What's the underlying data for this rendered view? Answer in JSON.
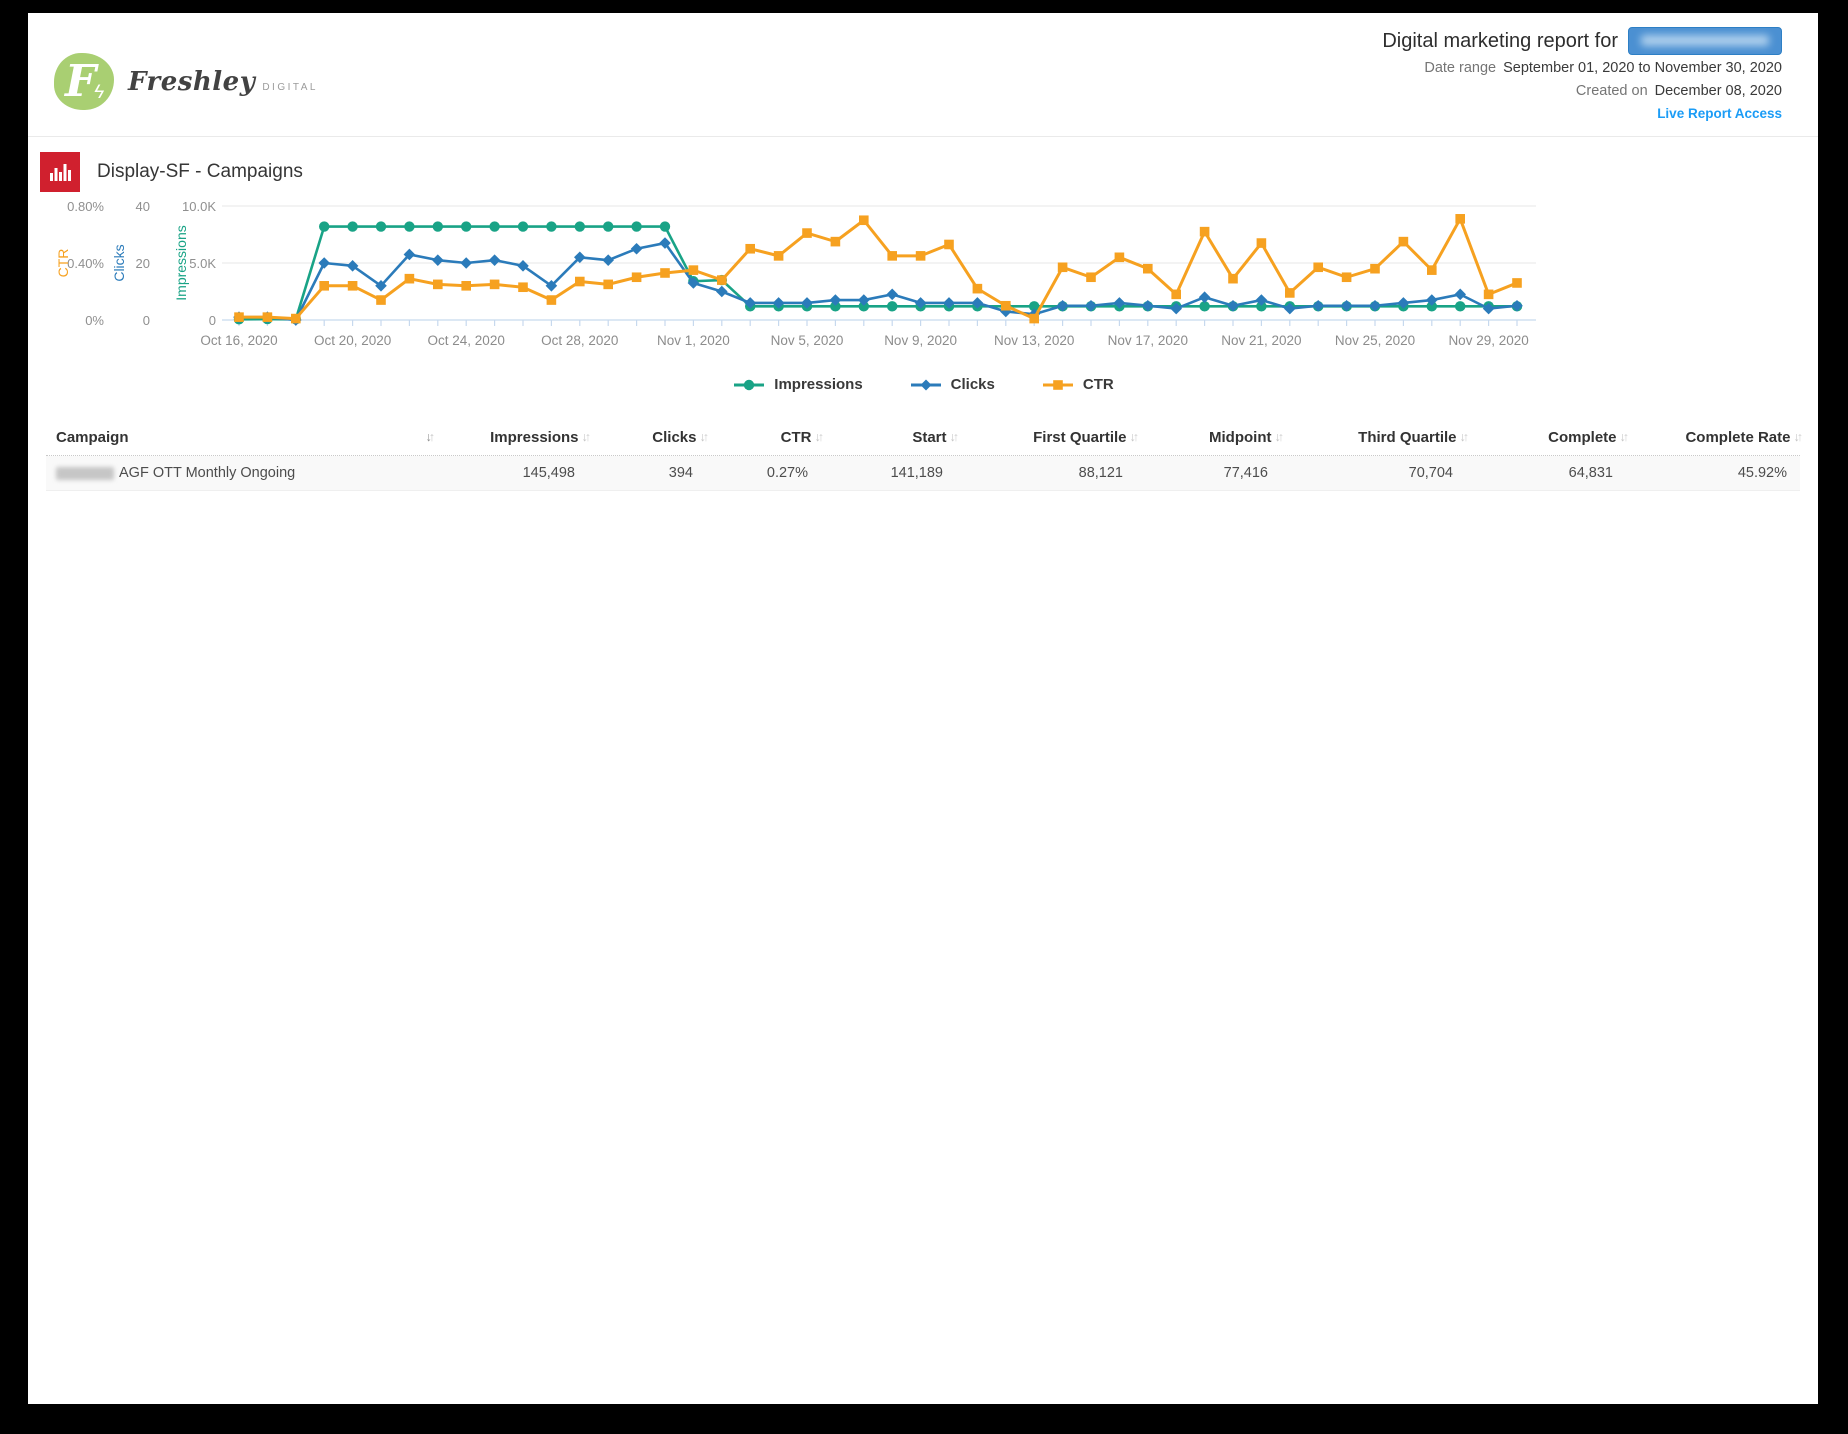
{
  "brand": {
    "name": "Freshley",
    "suffix": "DIGITAL",
    "monogram": "F",
    "accent_green": "#a9cf72"
  },
  "header": {
    "title": "Digital marketing report for",
    "client_redacted": true,
    "date_range_label": "Date range",
    "date_range_value": "September 01, 2020 to November 30, 2020",
    "created_label": "Created on",
    "created_value": "December 08, 2020",
    "live_link": "Live Report Access",
    "link_color": "#1b9cf6"
  },
  "section": {
    "title": "Display-SF - Campaigns",
    "icon": "bar-chart-icon",
    "icon_color": "#d0202e"
  },
  "chart_data": {
    "type": "line",
    "year_suffix": "2020",
    "x": [
      "Oct 16",
      "Oct 17",
      "Oct 18",
      "Oct 19",
      "Oct 20",
      "Oct 21",
      "Oct 22",
      "Oct 23",
      "Oct 24",
      "Oct 25",
      "Oct 26",
      "Oct 27",
      "Oct 28",
      "Oct 29",
      "Oct 30",
      "Oct 31",
      "Nov 1",
      "Nov 2",
      "Nov 3",
      "Nov 4",
      "Nov 5",
      "Nov 6",
      "Nov 7",
      "Nov 8",
      "Nov 9",
      "Nov 10",
      "Nov 11",
      "Nov 12",
      "Nov 13",
      "Nov 14",
      "Nov 15",
      "Nov 16",
      "Nov 17",
      "Nov 18",
      "Nov 19",
      "Nov 20",
      "Nov 21",
      "Nov 22",
      "Nov 23",
      "Nov 24",
      "Nov 25",
      "Nov 26",
      "Nov 27",
      "Nov 28",
      "Nov 29",
      "Nov 30"
    ],
    "x_tick_labels": [
      "Oct 16, 2020",
      "Oct 20, 2020",
      "Oct 24, 2020",
      "Oct 28, 2020",
      "Nov 1, 2020",
      "Nov 5, 2020",
      "Nov 9, 2020",
      "Nov 13, 2020",
      "Nov 17, 2020",
      "Nov 21, 2020",
      "Nov 25, 2020",
      "Nov 29, 2020"
    ],
    "x_label_every": 4,
    "grid": "horizontal",
    "legend_position": "bottom-center",
    "colors": {
      "grid": "#e7e7e7",
      "axis_line": "#c7d9ee",
      "tick_text": "#8c8c8c"
    },
    "series": [
      {
        "name": "Impressions",
        "color": "#19a386",
        "marker": "circle",
        "axis": {
          "min": 0,
          "max": 10000,
          "ticks": [
            "0",
            "5.0K",
            "10.0K"
          ]
        },
        "values": [
          60,
          80,
          60,
          8200,
          8200,
          8200,
          8200,
          8200,
          8200,
          8200,
          8200,
          8200,
          8200,
          8200,
          8200,
          8200,
          3400,
          3500,
          1200,
          1200,
          1200,
          1200,
          1200,
          1200,
          1200,
          1200,
          1200,
          1200,
          1200,
          1200,
          1200,
          1200,
          1200,
          1200,
          1200,
          1200,
          1200,
          1200,
          1200,
          1200,
          1200,
          1200,
          1200,
          1200,
          1200,
          1200
        ]
      },
      {
        "name": "Clicks",
        "color": "#2b7bba",
        "marker": "diamond",
        "axis": {
          "min": 0,
          "max": 40,
          "ticks": [
            "0",
            "20",
            "40"
          ]
        },
        "values": [
          1,
          1,
          0,
          20,
          19,
          12,
          23,
          21,
          20,
          21,
          19,
          12,
          22,
          21,
          25,
          27,
          13,
          10,
          6,
          6,
          6,
          7,
          7,
          9,
          6,
          6,
          6,
          3,
          2,
          5,
          5,
          6,
          5,
          4,
          8,
          5,
          7,
          4,
          5,
          5,
          5,
          6,
          7,
          9,
          4,
          5
        ]
      },
      {
        "name": "CTR",
        "color": "#f6a120",
        "marker": "square",
        "axis": {
          "min": 0,
          "max": 0.8,
          "ticks": [
            "0%",
            "0.40%",
            "0.80%"
          ]
        },
        "values": [
          0.02,
          0.02,
          0.01,
          0.24,
          0.24,
          0.14,
          0.29,
          0.25,
          0.24,
          0.25,
          0.23,
          0.14,
          0.27,
          0.25,
          0.3,
          0.33,
          0.35,
          0.28,
          0.5,
          0.45,
          0.61,
          0.55,
          0.7,
          0.45,
          0.45,
          0.53,
          0.22,
          0.1,
          0.01,
          0.37,
          0.3,
          0.44,
          0.36,
          0.18,
          0.62,
          0.29,
          0.54,
          0.19,
          0.37,
          0.3,
          0.36,
          0.55,
          0.35,
          0.71,
          0.18,
          0.26
        ]
      }
    ]
  },
  "table": {
    "columns": [
      {
        "label": "Campaign",
        "align": "left"
      },
      {
        "label": "Impressions",
        "align": "right"
      },
      {
        "label": "Clicks",
        "align": "right"
      },
      {
        "label": "CTR",
        "align": "right"
      },
      {
        "label": "Start",
        "align": "right"
      },
      {
        "label": "First Quartile",
        "align": "right"
      },
      {
        "label": "Midpoint",
        "align": "right"
      },
      {
        "label": "Third Quartile",
        "align": "right"
      },
      {
        "label": "Complete",
        "align": "right"
      },
      {
        "label": "Complete Rate",
        "align": "right"
      }
    ],
    "rows": [
      {
        "campaign_prefix_redacted": true,
        "campaign": "AGF OTT Monthly Ongoing",
        "values": [
          "145,498",
          "394",
          "0.27%",
          "141,189",
          "88,121",
          "77,416",
          "70,704",
          "64,831",
          "45.92%"
        ]
      }
    ]
  }
}
